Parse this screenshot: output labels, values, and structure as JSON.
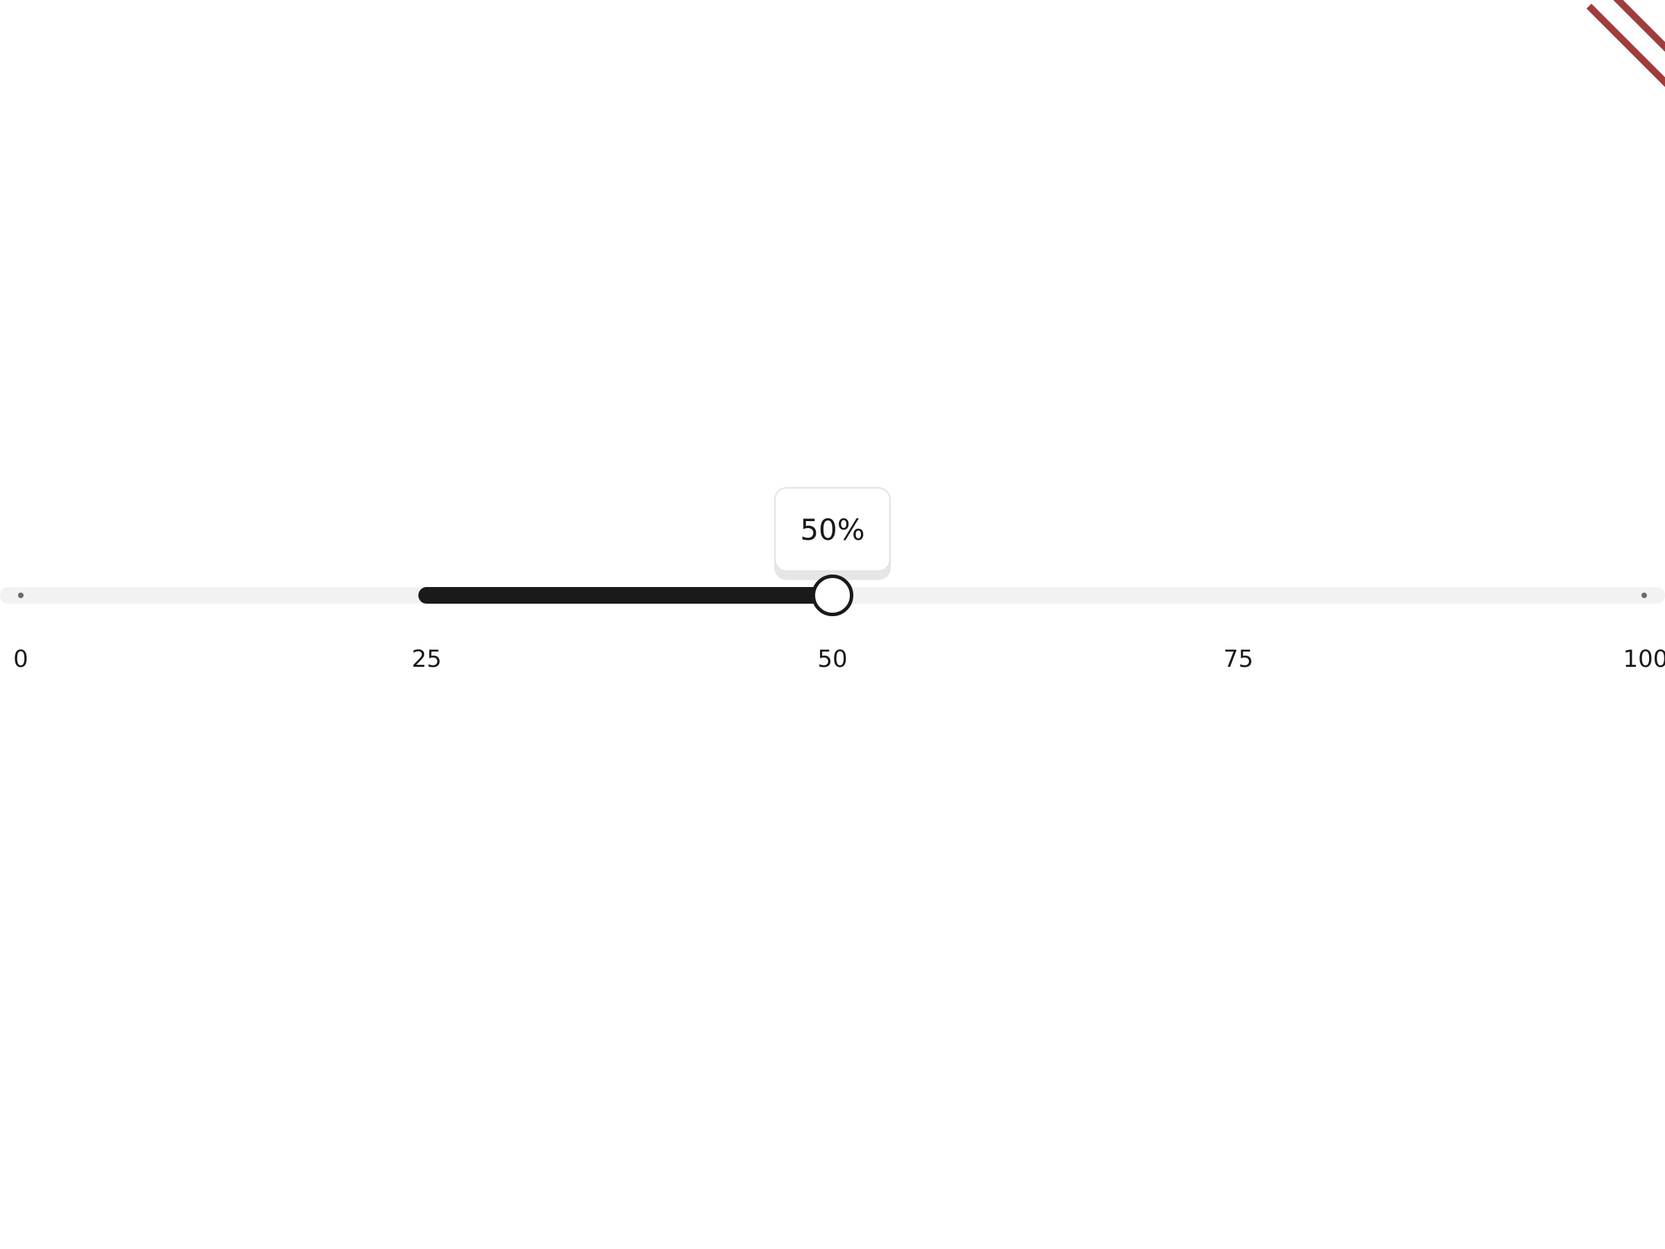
{
  "slider": {
    "min": 0,
    "max": 100,
    "range_start": 25,
    "value": 50,
    "tooltip_label": "50%",
    "tick_labels": [
      "0",
      "25",
      "50",
      "75",
      "100"
    ],
    "track_color": "#f2f2f2",
    "range_color": "#1a1a1a",
    "thumb_border_color": "#1a1a1a"
  },
  "ribbon": {
    "color": "#a23b3b"
  }
}
